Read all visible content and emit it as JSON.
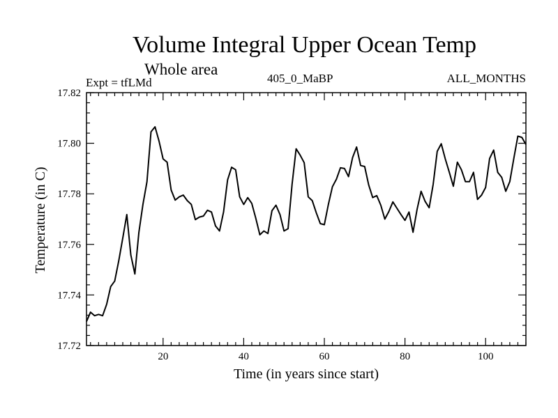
{
  "chart_data": {
    "type": "line",
    "title": "Volume Integral Upper Ocean Temp",
    "subtitle": "Whole area",
    "expt_label": "Expt = tfLMd",
    "run_label": "405_0_MaBP",
    "months_label": "ALL_MONTHS",
    "xlabel": "Time (in years since start)",
    "ylabel": "Temperature (in C)",
    "xlim": [
      1,
      110
    ],
    "ylim": [
      17.72,
      17.82
    ],
    "x_ticks": [
      20,
      40,
      60,
      80,
      100
    ],
    "x_tick_labels": [
      "20",
      "40",
      "60",
      "80",
      "100"
    ],
    "y_ticks": [
      17.72,
      17.74,
      17.76,
      17.78,
      17.8,
      17.82
    ],
    "y_tick_labels": [
      "17.72",
      "17.74",
      "17.76",
      "17.78",
      "17.80",
      "17.82"
    ],
    "series": [
      {
        "name": "Volume Integral Upper Ocean Temp",
        "color": "#000000",
        "x": [
          1,
          2,
          3,
          4,
          5,
          6,
          7,
          8,
          9,
          10,
          11,
          12,
          13,
          14,
          15,
          16,
          17,
          18,
          19,
          20,
          21,
          22,
          23,
          24,
          25,
          26,
          27,
          28,
          29,
          30,
          31,
          32,
          33,
          34,
          35,
          36,
          37,
          38,
          39,
          40,
          41,
          42,
          43,
          44,
          45,
          46,
          47,
          48,
          49,
          50,
          51,
          52,
          53,
          54,
          55,
          56,
          57,
          58,
          59,
          60,
          61,
          62,
          63,
          64,
          65,
          66,
          67,
          68,
          69,
          70,
          71,
          72,
          73,
          74,
          75,
          76,
          77,
          78,
          79,
          80,
          81,
          82,
          83,
          84,
          85,
          86,
          87,
          88,
          89,
          90,
          91,
          92,
          93,
          94,
          95,
          96,
          97,
          98,
          99,
          100,
          101,
          102,
          103,
          104,
          105,
          106,
          107,
          108,
          109,
          110
        ],
        "values": [
          17.7295,
          17.7332,
          17.7318,
          17.7323,
          17.7318,
          17.7363,
          17.7433,
          17.7455,
          17.7535,
          17.7625,
          17.7718,
          17.7558,
          17.7483,
          17.7648,
          17.7758,
          17.7848,
          17.8045,
          17.8065,
          17.8008,
          17.7938,
          17.7925,
          17.7815,
          17.7775,
          17.7788,
          17.7795,
          17.7773,
          17.7758,
          17.7698,
          17.7708,
          17.7712,
          17.7735,
          17.7728,
          17.7673,
          17.7653,
          17.7728,
          17.7855,
          17.7905,
          17.7895,
          17.7788,
          17.7758,
          17.7785,
          17.7762,
          17.7703,
          17.7638,
          17.7653,
          17.7643,
          17.7733,
          17.7755,
          17.7718,
          17.7653,
          17.7662,
          17.7838,
          17.7978,
          17.7953,
          17.7923,
          17.7788,
          17.7773,
          17.7725,
          17.7682,
          17.7678,
          17.7758,
          17.7828,
          17.7858,
          17.7903,
          17.79,
          17.7868,
          17.7943,
          17.7985,
          17.7912,
          17.7908,
          17.7835,
          17.7785,
          17.7793,
          17.7755,
          17.77,
          17.773,
          17.7768,
          17.7743,
          17.7718,
          17.7695,
          17.7728,
          17.7648,
          17.7738,
          17.781,
          17.777,
          17.7745,
          17.7838,
          17.7968,
          17.7998,
          17.7938,
          17.7885,
          17.783,
          17.7925,
          17.7895,
          17.7848,
          17.7848,
          17.7885,
          17.7778,
          17.7795,
          17.7825,
          17.794,
          17.7973,
          17.7885,
          17.7865,
          17.781,
          17.7848,
          17.794,
          17.8028,
          17.8023,
          17.7995
        ]
      }
    ]
  }
}
